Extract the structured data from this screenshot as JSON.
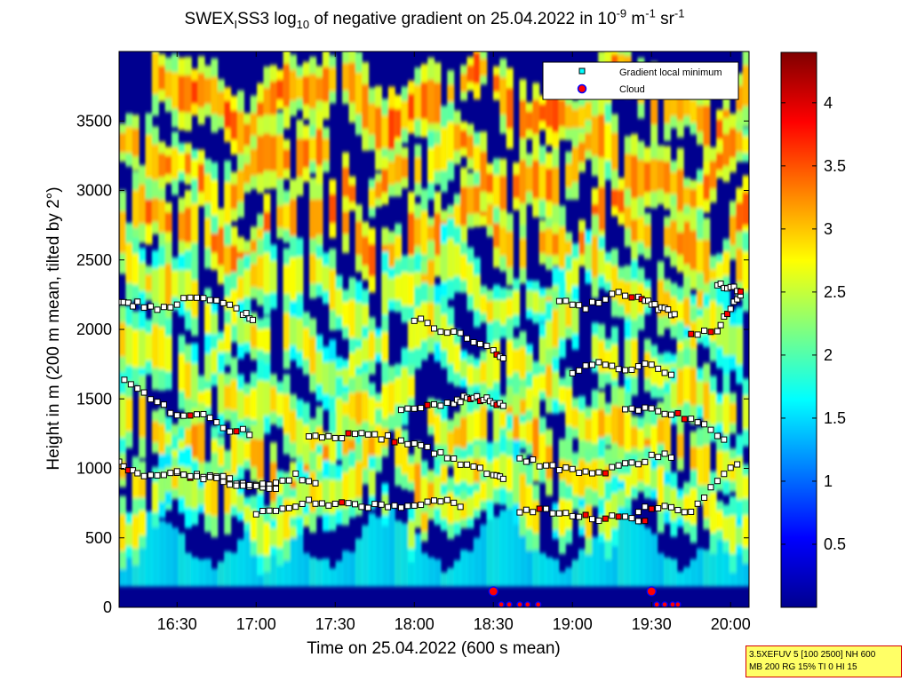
{
  "header": {
    "title_parts": {
      "a": "SWEX",
      "sub1": "I",
      "b": "SS3 log",
      "sub2": "10",
      "c": " of negative gradient on 25.04.2022 in 10",
      "sup1": "-9",
      "d": " m",
      "sup2": "-1",
      "e": " sr",
      "sup3": "-1"
    }
  },
  "info_box": {
    "line1": "3.5XEFUV 5 [100 2500] NH 600",
    "line2": "MB 200 RG 15% TI 0 HI 15"
  },
  "chart_data": {
    "type": "heatmap",
    "xlabel": "Time on 25.04.2022 (600 s mean)",
    "ylabel": "Height in m (200 m mean, tilted by 2°)",
    "x_ticks": [
      "16:30",
      "17:00",
      "17:30",
      "18:00",
      "18:30",
      "19:00",
      "19:30",
      "20:00"
    ],
    "x_tick_minutes": [
      990,
      1020,
      1050,
      1080,
      1110,
      1140,
      1170,
      1200
    ],
    "xlim_minutes": [
      968,
      1207
    ],
    "y_ticks": [
      0,
      500,
      1000,
      1500,
      2000,
      2500,
      3000,
      3500
    ],
    "ylim": [
      0,
      4000
    ],
    "colorbar": {
      "ticks": [
        0.5,
        1,
        1.5,
        2,
        2.5,
        3,
        3.5,
        4
      ],
      "tick_labels": [
        "0.5",
        "1",
        "1.5",
        "2",
        "2.5",
        "3",
        "3.5",
        "4"
      ],
      "range": [
        0,
        4.4
      ],
      "colormap": "jet"
    },
    "legend": {
      "position": "top-right",
      "entries": [
        {
          "label": "Gradient local minimum",
          "marker": "square",
          "color": "#00ffff"
        },
        {
          "label": "Cloud",
          "marker": "circle",
          "color": "#ff0000"
        }
      ]
    },
    "layers": [
      {
        "y_center": 2700,
        "level": 0.72,
        "seed": 11
      },
      {
        "y_center": 2280,
        "level": 0.62,
        "seed": 23
      },
      {
        "y_center": 1850,
        "level": 0.6,
        "seed": 37
      },
      {
        "y_center": 1380,
        "level": 0.63,
        "seed": 41
      },
      {
        "y_center": 1020,
        "level": 0.66,
        "seed": 53
      },
      {
        "y_center": 740,
        "level": 0.6,
        "seed": 67
      },
      {
        "y_center": 3650,
        "level": 0.74,
        "seed": 71
      },
      {
        "y_center": 3150,
        "level": 0.7,
        "seed": 83
      }
    ],
    "minima_tracks": [
      {
        "t": [
          968,
          975,
          985,
          995,
          1005,
          1015,
          1020
        ],
        "h": [
          2200,
          2180,
          2150,
          2230,
          2200,
          2120,
          2060
        ]
      },
      {
        "t": [
          970,
          980,
          990,
          1000,
          1010,
          1020
        ],
        "h": [
          1620,
          1500,
          1380,
          1380,
          1280,
          1250
        ]
      },
      {
        "t": [
          968,
          975,
          985,
          995,
          1005,
          1015,
          1025,
          1035,
          1045
        ],
        "h": [
          1050,
          950,
          960,
          950,
          940,
          880,
          870,
          950,
          880
        ]
      },
      {
        "t": [
          990,
          1000,
          1010,
          1020,
          1030
        ],
        "h": [
          960,
          930,
          900,
          880,
          860
        ]
      },
      {
        "t": [
          1020,
          1030,
          1040,
          1050,
          1060,
          1070,
          1080,
          1090,
          1100
        ],
        "h": [
          670,
          700,
          760,
          740,
          730,
          720,
          750,
          770,
          730
        ]
      },
      {
        "t": [
          1040,
          1050,
          1060,
          1070,
          1080,
          1090,
          1100,
          1110,
          1115
        ],
        "h": [
          1250,
          1230,
          1250,
          1220,
          1170,
          1100,
          1020,
          950,
          920
        ]
      },
      {
        "t": [
          1075,
          1085,
          1095,
          1100,
          1105,
          1110,
          1115
        ],
        "h": [
          1420,
          1450,
          1470,
          1520,
          1500,
          1480,
          1460
        ]
      },
      {
        "t": [
          1080,
          1090,
          1100,
          1110,
          1115
        ],
        "h": [
          2080,
          2000,
          1950,
          1850,
          1780
        ]
      },
      {
        "t": [
          1120,
          1130,
          1140,
          1150,
          1160,
          1170,
          1180
        ],
        "h": [
          1070,
          1020,
          980,
          960,
          1020,
          1080,
          1100
        ]
      },
      {
        "t": [
          1120,
          1130,
          1140,
          1150,
          1160,
          1170
        ],
        "h": [
          700,
          690,
          650,
          640,
          660,
          620
        ]
      },
      {
        "t": [
          1135,
          1145,
          1155,
          1165,
          1170,
          1175,
          1180
        ],
        "h": [
          2200,
          2150,
          2260,
          2240,
          2170,
          2150,
          2070
        ]
      },
      {
        "t": [
          1140,
          1150,
          1160,
          1170,
          1180
        ],
        "h": [
          1700,
          1750,
          1720,
          1740,
          1650
        ]
      },
      {
        "t": [
          1160,
          1170,
          1180,
          1190,
          1200
        ],
        "h": [
          1420,
          1440,
          1380,
          1300,
          1200
        ]
      },
      {
        "t": [
          1165,
          1175,
          1185,
          1195,
          1205
        ],
        "h": [
          700,
          720,
          680,
          920,
          1060
        ]
      },
      {
        "t": [
          1185,
          1195,
          1200,
          1205
        ],
        "h": [
          1960,
          2000,
          2150,
          2280
        ]
      },
      {
        "t": [
          1195,
          1200,
          1205
        ],
        "h": [
          2330,
          2300,
          2260
        ]
      }
    ],
    "cloud_points": [
      {
        "t": [
          1110,
          1113,
          1116,
          1120,
          1123,
          1127
        ],
        "h": [
          115,
          20,
          20,
          20,
          20,
          20
        ]
      },
      {
        "t": [
          1170,
          1172,
          1175,
          1178,
          1180
        ],
        "h": [
          115,
          20,
          20,
          20,
          20
        ]
      }
    ]
  }
}
